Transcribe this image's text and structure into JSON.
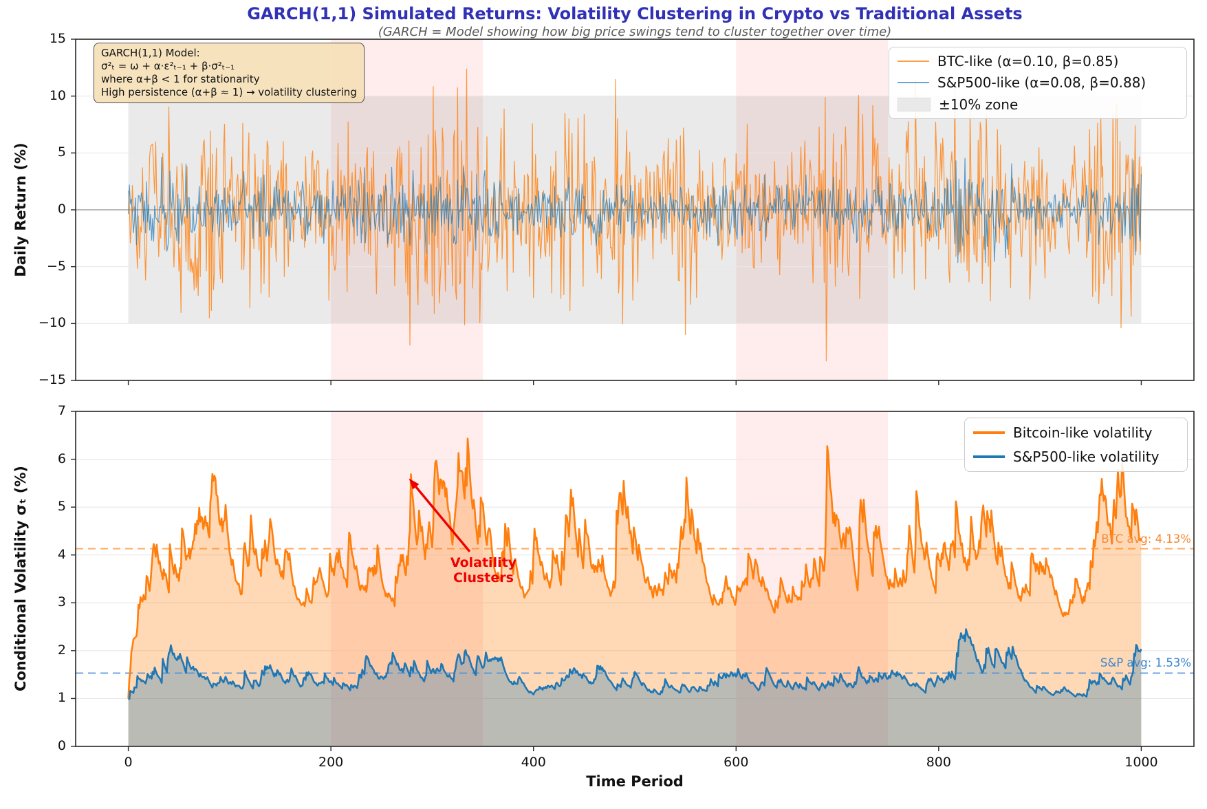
{
  "figure": {
    "title": "GARCH(1,1) Simulated Returns: Volatility Clustering in Crypto vs Traditional Assets",
    "subtitle": "(GARCH = Model showing how big price swings tend to cluster together over time)",
    "title_color": "#3131b5"
  },
  "annotations": {
    "model_box": {
      "lines": [
        "GARCH(1,1) Model:",
        "σ²ₜ = ω + α·ε²ₜ₋₁ + β·σ²ₜ₋₁",
        "where α+β < 1 for stationarity",
        "High persistence (α+β ≈ 1) → volatility clustering"
      ],
      "bg": "#f5deb3",
      "border": "#4a4a4a"
    },
    "clusters": {
      "label": "Volatility\nClusters",
      "color": "#ee0000",
      "arrow_tip_x": 277,
      "arrow_tip_sigma": 5.6,
      "arrow_tail_x": 337,
      "arrow_tail_sigma": 4.07
    },
    "btc_avg": {
      "label": "BTC avg: 4.13%",
      "value": 4.13,
      "color": "#ff7f0e"
    },
    "sp_avg": {
      "label": "S&P avg: 1.53%",
      "value": 1.53,
      "color": "#4a90d9"
    }
  },
  "legends": {
    "top": {
      "items": [
        {
          "label": "BTC-like (α=0.10, β=0.85)",
          "color": "#ff9c47",
          "type": "line"
        },
        {
          "label": "S&P500-like (α=0.08, β=0.88)",
          "color": "#6ba3d6",
          "type": "line"
        },
        {
          "label": "±10% zone",
          "color": "#e9e9e9",
          "type": "patch"
        }
      ]
    },
    "bottom": {
      "items": [
        {
          "label": "Bitcoin-like volatility",
          "color": "#ff7f0e",
          "type": "line"
        },
        {
          "label": "S&P500-like volatility",
          "color": "#1f77b4",
          "type": "line"
        }
      ]
    }
  },
  "chart_data": {
    "type": "line",
    "x": {
      "label": "Time Period",
      "ticks": [
        0,
        200,
        400,
        600,
        800,
        1000
      ],
      "tick_labels": [
        "0",
        "200",
        "400",
        "600",
        "800",
        "1000"
      ],
      "n": 1000,
      "xlim": [
        -52,
        1052
      ]
    },
    "highlight_spans": [
      {
        "x0": 200,
        "x1": 350
      },
      {
        "x0": 600,
        "x1": 750
      }
    ],
    "span_color": "rgba(255,0,0,0.07)",
    "panels": [
      {
        "name": "returns",
        "ylabel": "Daily Return (%)",
        "ylim": [
          -15,
          15
        ],
        "yticks": [
          15,
          10,
          5,
          0,
          -5,
          -10,
          -15
        ],
        "ytick_labels": [
          "15",
          "10",
          "5",
          "0",
          "−5",
          "−10",
          "−15"
        ],
        "grid_ticks": [
          10,
          5,
          -5,
          -10
        ],
        "zero_line": 0,
        "zone": {
          "y0": -10,
          "y1": 10,
          "x0": 0,
          "x1": 1000,
          "color": "rgba(128,128,128,0.17)",
          "label": "±10% zone"
        },
        "series": [
          {
            "name": "BTC-like (α=0.10, β=0.85)",
            "model": "GARCH(1,1)",
            "omega": 0.85,
            "alpha": 0.1,
            "beta": 0.85,
            "sigma0": 1.0,
            "seed": 1337,
            "color": "rgba(255,127,14,0.8)",
            "width": 1.2
          },
          {
            "name": "S&P500-like (α=0.08, β=0.88)",
            "model": "GARCH(1,1)",
            "omega": 0.094,
            "alpha": 0.08,
            "beta": 0.88,
            "sigma0": 1.0,
            "seed": 2024,
            "color": "rgba(31,119,180,0.7)",
            "width": 1.2
          }
        ]
      },
      {
        "name": "volatility",
        "ylabel": "Conditional Volatility σₜ (%)",
        "ylim": [
          0,
          7
        ],
        "yticks": [
          7,
          6,
          5,
          4,
          3,
          2,
          1,
          0
        ],
        "ytick_labels": [
          "7",
          "6",
          "5",
          "4",
          "3",
          "2",
          "1",
          "0"
        ],
        "grid_ticks": [
          6,
          5,
          4,
          3,
          2,
          1
        ],
        "avg_lines": [
          {
            "label": "BTC avg: 4.13%",
            "value": 4.13,
            "color": "rgba(255,127,14,0.65)"
          },
          {
            "label": "S&P avg: 1.53%",
            "value": 1.53,
            "color": "rgba(74,144,217,0.8)"
          }
        ],
        "series": [
          {
            "name": "Bitcoin-like volatility",
            "color": "#ff7f0e",
            "fill": "rgba(255,127,14,0.30)",
            "width": 2.6
          },
          {
            "name": "S&P500-like volatility",
            "color": "#1f77b4",
            "fill": "rgba(31,119,180,0.30)",
            "width": 2.6
          }
        ]
      }
    ]
  }
}
